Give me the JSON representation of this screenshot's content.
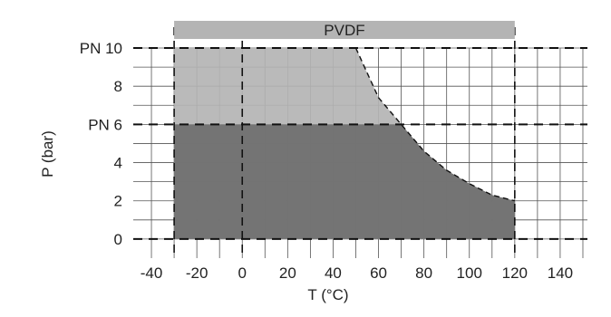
{
  "chart_data": {
    "type": "area",
    "title": "PVDF",
    "xlabel": "T (°C)",
    "ylabel": "P (bar)",
    "xlim": [
      -48,
      152
    ],
    "ylim": [
      -1,
      10
    ],
    "x_ticks": [
      {
        "value": -40,
        "label": "-40"
      },
      {
        "value": -20,
        "label": "-20"
      },
      {
        "value": 0,
        "label": "0"
      },
      {
        "value": 20,
        "label": "20"
      },
      {
        "value": 40,
        "label": "40"
      },
      {
        "value": 60,
        "label": "60"
      },
      {
        "value": 80,
        "label": "80"
      },
      {
        "value": 100,
        "label": "100"
      },
      {
        "value": 120,
        "label": "120"
      },
      {
        "value": 140,
        "label": "140"
      }
    ],
    "y_ticks": [
      {
        "value": 0,
        "label": "0"
      },
      {
        "value": 2,
        "label": "2"
      },
      {
        "value": 4,
        "label": "4"
      },
      {
        "value": 6,
        "label": "PN 6"
      },
      {
        "value": 8,
        "label": "8"
      },
      {
        "value": 10,
        "label": "PN 10"
      }
    ],
    "grid": true,
    "temperature_range": [
      -30,
      120
    ],
    "reference_lines": {
      "horizontal": [
        0,
        6,
        10
      ],
      "vertical": [
        -30,
        0,
        120
      ]
    },
    "series": [
      {
        "color": "#b4b4b4",
        "x": [
          -30,
          50,
          60,
          70,
          80,
          90,
          100,
          110,
          120
        ],
        "values": [
          10,
          10,
          7.4,
          6.0,
          4.6,
          3.6,
          2.9,
          2.3,
          2.0
        ]
      },
      {
        "color": "#6e6e6e",
        "x": [
          -30,
          70,
          80,
          90,
          100,
          110,
          120
        ],
        "values": [
          6,
          6.0,
          4.6,
          3.6,
          2.9,
          2.3,
          2.0
        ]
      }
    ]
  }
}
